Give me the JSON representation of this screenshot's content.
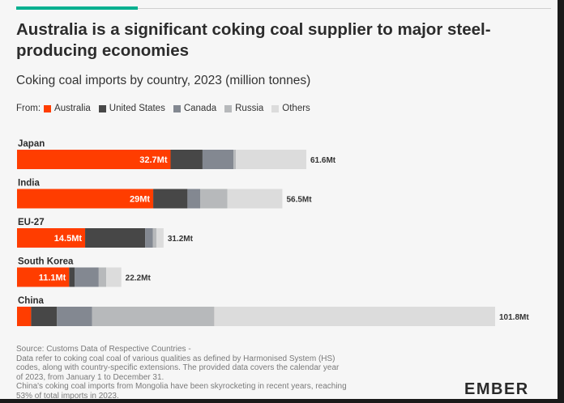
{
  "title": "Australia is a significant coking coal supplier to major steel-producing economies",
  "subtitle": "Coking coal imports by country, 2023 (million tonnes)",
  "legend_lead": "From:",
  "accent_color": "#00b090",
  "colors": {
    "Australia": "#ff3d00",
    "United States": "#474747",
    "Canada": "#838891",
    "Russia": "#b7b9bb",
    "Others": "#dcdcdc"
  },
  "chart_data": {
    "type": "bar",
    "orientation": "horizontal",
    "stacked": true,
    "categories": [
      "Japan",
      "India",
      "EU-27",
      "South Korea",
      "China"
    ],
    "series": [
      {
        "name": "Australia",
        "values": [
          32.7,
          29.0,
          14.5,
          11.1,
          3.0
        ]
      },
      {
        "name": "United States",
        "values": [
          6.8,
          7.3,
          12.8,
          1.2,
          5.5
        ]
      },
      {
        "name": "Canada",
        "values": [
          6.6,
          2.7,
          1.6,
          5.1,
          7.5
        ]
      },
      {
        "name": "Russia",
        "values": [
          0.5,
          5.8,
          0.8,
          1.6,
          26.0
        ]
      },
      {
        "name": "Others",
        "values": [
          15.0,
          11.7,
          1.5,
          3.2,
          59.8
        ]
      }
    ],
    "labels": {
      "Australia": [
        "32.7Mt",
        "29Mt",
        "14.5Mt",
        "11.1Mt",
        ""
      ],
      "totals": [
        "61.6Mt",
        "56.5Mt",
        "31.2Mt",
        "22.2Mt",
        "101.8Mt"
      ]
    },
    "totals": [
      61.6,
      56.5,
      31.2,
      22.2,
      101.8
    ],
    "xlim": [
      0,
      101.8
    ],
    "legend_position": "top-left",
    "grid": false
  },
  "footnote": [
    "Source: Customs Data of Respective Countries -",
    "Data refer to coking coal coal of various qualities as defined by Harmonised System (HS)",
    "codes, along with country-specific extensions. The provided data covers the calendar year",
    "of 2023, from January 1 to December 31.",
    "China's coking coal imports from Mongolia have been skyrocketing in recent years, reaching",
    "53% of total imports in 2023."
  ],
  "logo_text": "EMBER"
}
